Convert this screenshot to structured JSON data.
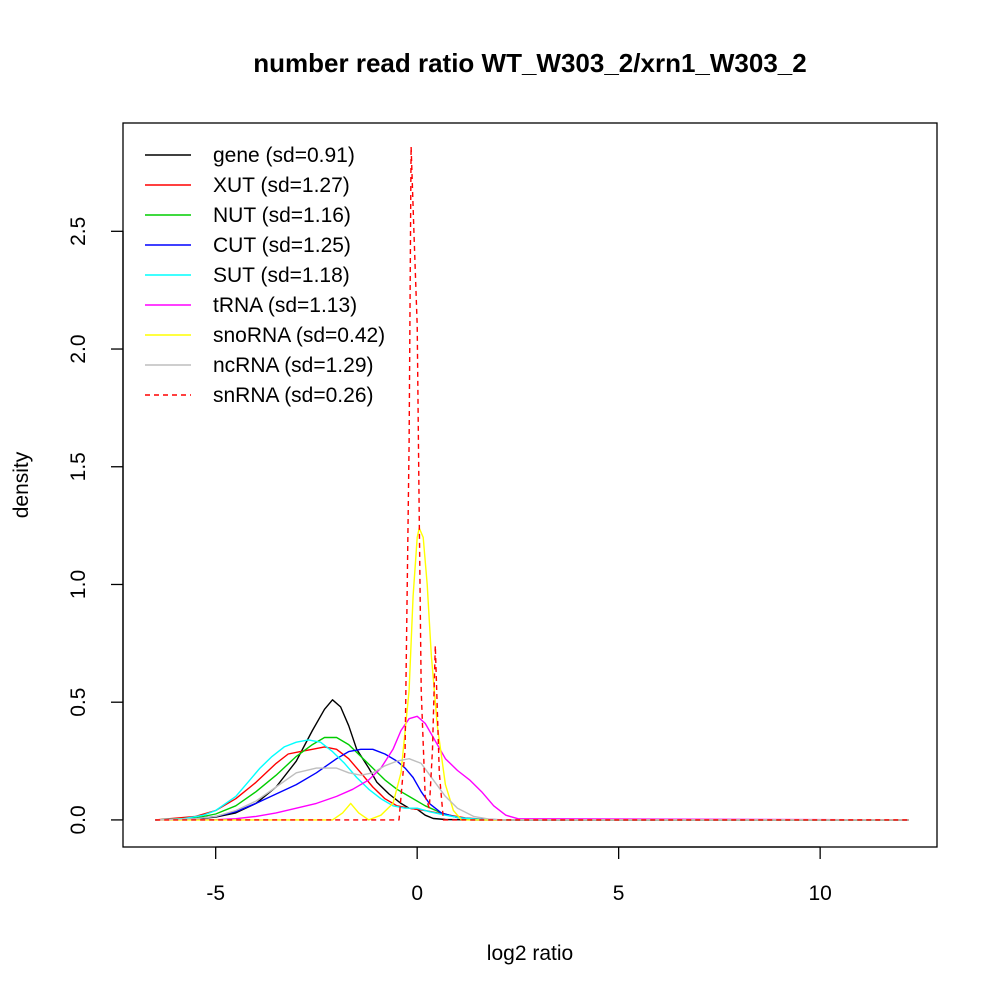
{
  "chart_data": {
    "type": "line",
    "title": "number read ratio WT_W303_2/xrn1_W303_2",
    "xlabel": "log2 ratio",
    "ylabel": "density",
    "xlim": [
      -7.3,
      12.9
    ],
    "ylim": [
      -0.115,
      2.96
    ],
    "x_ticks": [
      -5,
      0,
      5,
      10
    ],
    "x_tick_labels": [
      "-5",
      "0",
      "5",
      "10"
    ],
    "y_ticks": [
      0.0,
      0.5,
      1.0,
      1.5,
      2.0,
      2.5
    ],
    "y_tick_labels": [
      "0.0",
      "0.5",
      "1.0",
      "1.5",
      "2.0",
      "2.5"
    ],
    "grid": false,
    "legend_position": "top-left",
    "series": [
      {
        "name": "gene (sd=0.91)",
        "color": "#000000",
        "dashed": false,
        "x": [
          -6.5,
          -5.5,
          -5,
          -4.5,
          -4,
          -3.5,
          -3,
          -2.6,
          -2.3,
          -2.1,
          -1.9,
          -1.7,
          -1.5,
          -1.2,
          -1.0,
          -0.7,
          -0.4,
          -0.2,
          0,
          0.2,
          0.4,
          0.7,
          1.0,
          1.5,
          2.5,
          12.2
        ],
        "y": [
          0,
          0.004,
          0.012,
          0.03,
          0.07,
          0.14,
          0.25,
          0.38,
          0.47,
          0.51,
          0.48,
          0.4,
          0.3,
          0.22,
          0.16,
          0.11,
          0.07,
          0.05,
          0.045,
          0.02,
          0.006,
          0.002,
          0.001,
          0,
          0,
          0
        ]
      },
      {
        "name": "XUT (sd=1.27)",
        "color": "#ff0000",
        "dashed": false,
        "x": [
          -6.5,
          -5.5,
          -5,
          -4.5,
          -4,
          -3.5,
          -3.2,
          -2.9,
          -2.6,
          -2.3,
          -2.0,
          -1.7,
          -1.4,
          -1.1,
          -0.8,
          -0.5,
          -0.2,
          0.2,
          0.5,
          0.8,
          1.2,
          1.7,
          2.2,
          2.6,
          12.2
        ],
        "y": [
          0,
          0.015,
          0.04,
          0.09,
          0.16,
          0.24,
          0.28,
          0.29,
          0.3,
          0.31,
          0.3,
          0.26,
          0.2,
          0.14,
          0.09,
          0.06,
          0.05,
          0.04,
          0.03,
          0.02,
          0.008,
          0.002,
          0,
          0,
          0
        ]
      },
      {
        "name": "NUT (sd=1.16)",
        "color": "#00cd00",
        "dashed": false,
        "x": [
          -6.5,
          -5.5,
          -5,
          -4.5,
          -4,
          -3.5,
          -3.0,
          -2.6,
          -2.3,
          -2.0,
          -1.7,
          -1.4,
          -1.1,
          -0.8,
          -0.5,
          -0.2,
          0.2,
          0.6,
          1.0,
          1.5,
          2.0,
          2.5,
          12.2
        ],
        "y": [
          0,
          0.008,
          0.025,
          0.06,
          0.12,
          0.19,
          0.27,
          0.32,
          0.35,
          0.35,
          0.32,
          0.27,
          0.22,
          0.17,
          0.13,
          0.1,
          0.06,
          0.03,
          0.01,
          0.003,
          0.001,
          0,
          0
        ]
      },
      {
        "name": "CUT (sd=1.25)",
        "color": "#0000ff",
        "dashed": false,
        "x": [
          -6.5,
          -5.5,
          -5,
          -4.5,
          -4,
          -3.5,
          -3.0,
          -2.5,
          -2.0,
          -1.7,
          -1.4,
          -1.1,
          -0.8,
          -0.5,
          -0.3,
          -0.1,
          0.1,
          0.3,
          0.6,
          1.0,
          1.5,
          2.0,
          2.5,
          12.2
        ],
        "y": [
          0,
          0.005,
          0.015,
          0.035,
          0.07,
          0.11,
          0.15,
          0.2,
          0.26,
          0.29,
          0.3,
          0.3,
          0.28,
          0.25,
          0.22,
          0.18,
          0.12,
          0.07,
          0.03,
          0.01,
          0.003,
          0.001,
          0,
          0
        ]
      },
      {
        "name": "SUT (sd=1.18)",
        "color": "#00ffff",
        "dashed": false,
        "x": [
          -6.5,
          -5.8,
          -5.3,
          -5,
          -4.5,
          -4.2,
          -3.9,
          -3.6,
          -3.3,
          -3.0,
          -2.7,
          -2.4,
          -2.1,
          -1.8,
          -1.5,
          -1.2,
          -0.9,
          -0.6,
          -0.3,
          0,
          0.3,
          0.7,
          1.1,
          1.6,
          2.2,
          12.2
        ],
        "y": [
          0,
          0.005,
          0.02,
          0.04,
          0.1,
          0.16,
          0.22,
          0.27,
          0.31,
          0.33,
          0.34,
          0.33,
          0.29,
          0.24,
          0.18,
          0.13,
          0.09,
          0.06,
          0.05,
          0.05,
          0.035,
          0.02,
          0.008,
          0.002,
          0,
          0
        ]
      },
      {
        "name": "tRNA (sd=1.13)",
        "color": "#ff00ff",
        "dashed": false,
        "x": [
          -6.5,
          -5.0,
          -4.5,
          -4.0,
          -3.5,
          -3.0,
          -2.5,
          -2.0,
          -1.6,
          -1.2,
          -0.9,
          -0.6,
          -0.4,
          -0.2,
          0,
          0.2,
          0.4,
          0.7,
          1.0,
          1.3,
          1.6,
          1.9,
          2.2,
          2.5,
          12.2
        ],
        "y": [
          0,
          0.001,
          0.005,
          0.015,
          0.03,
          0.05,
          0.07,
          0.1,
          0.13,
          0.17,
          0.22,
          0.3,
          0.38,
          0.43,
          0.44,
          0.41,
          0.35,
          0.26,
          0.21,
          0.17,
          0.12,
          0.06,
          0.02,
          0.005,
          0
        ]
      },
      {
        "name": "snoRNA (sd=0.42)",
        "color": "#ffff00",
        "dashed": false,
        "x": [
          -6.5,
          -2.1,
          -1.85,
          -1.65,
          -1.45,
          -1.2,
          -0.9,
          -0.6,
          -0.4,
          -0.2,
          -0.1,
          0,
          0.05,
          0.15,
          0.25,
          0.35,
          0.5,
          0.7,
          0.9,
          1.1,
          12.2
        ],
        "y": [
          0,
          0,
          0.03,
          0.07,
          0.03,
          0,
          0.02,
          0.07,
          0.2,
          0.55,
          0.95,
          1.2,
          1.24,
          1.2,
          1.0,
          0.7,
          0.4,
          0.15,
          0.04,
          0,
          0
        ]
      },
      {
        "name": "ncRNA (sd=1.29)",
        "color": "#bebebe",
        "dashed": false,
        "x": [
          -6.5,
          -5.5,
          -5,
          -4.5,
          -4,
          -3.5,
          -3.0,
          -2.5,
          -2.0,
          -1.7,
          -1.4,
          -1.1,
          -0.8,
          -0.5,
          -0.2,
          0.1,
          0.4,
          0.7,
          1.0,
          1.4,
          1.8,
          2.2,
          12.2
        ],
        "y": [
          0,
          0.005,
          0.015,
          0.04,
          0.08,
          0.14,
          0.2,
          0.22,
          0.22,
          0.2,
          0.19,
          0.2,
          0.23,
          0.25,
          0.26,
          0.24,
          0.17,
          0.1,
          0.05,
          0.015,
          0.003,
          0,
          0
        ]
      },
      {
        "name": "snRNA (sd=0.26)",
        "color": "#ff0000",
        "dashed": true,
        "x": [
          -6.5,
          -0.45,
          -0.3,
          -0.2,
          -0.15,
          -0.08,
          0,
          0.05,
          0.1,
          0.2,
          0.3,
          0.38,
          0.45,
          0.55,
          0.65,
          12.2
        ],
        "y": [
          0,
          0,
          0.3,
          1.6,
          2.86,
          2.5,
          2.1,
          1.3,
          0.55,
          0.1,
          0.05,
          0.3,
          0.74,
          0.2,
          0,
          0
        ]
      }
    ]
  }
}
